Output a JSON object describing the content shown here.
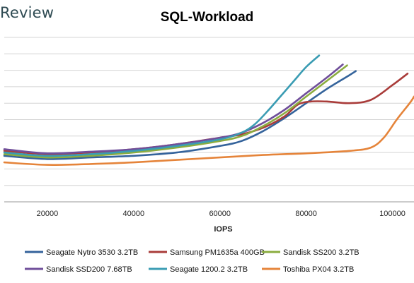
{
  "logo_text": "Review",
  "chart_data": {
    "type": "line",
    "title": "SQL-Workload",
    "xlabel": "IOPS",
    "ylabel": "",
    "x_ticks": [
      20000,
      40000,
      60000,
      80000,
      100000
    ],
    "xlim": [
      10000,
      105000
    ],
    "ylim": [
      0,
      10
    ],
    "y_grid_lines": 10,
    "legend_position": "bottom",
    "series": [
      {
        "name": "Seagate Nytro 3530 3.2TB",
        "color": "#34639b",
        "x": [
          10000,
          20000,
          30000,
          40000,
          50000,
          60000,
          65000,
          70000,
          75000,
          80000,
          85000,
          90000,
          91500
        ],
        "y": [
          2.8,
          2.6,
          2.7,
          2.8,
          3.0,
          3.4,
          3.7,
          4.3,
          5.1,
          6.0,
          6.9,
          7.7,
          7.95
        ]
      },
      {
        "name": "Samsung PM1635a 400GB",
        "color": "#a93c3a",
        "x": [
          10000,
          20000,
          30000,
          40000,
          50000,
          60000,
          65000,
          70000,
          75000,
          78000,
          81000,
          85000,
          90000,
          95000,
          100000,
          103500
        ],
        "y": [
          3.1,
          2.9,
          3.0,
          3.2,
          3.5,
          3.9,
          4.1,
          4.5,
          5.2,
          5.9,
          6.1,
          6.1,
          6.0,
          6.2,
          7.1,
          7.8
        ]
      },
      {
        "name": "Sandisk SS200 3.2TB",
        "color": "#8bac3f",
        "x": [
          10000,
          20000,
          30000,
          40000,
          50000,
          60000,
          65000,
          70000,
          75000,
          80000,
          85000,
          89500
        ],
        "y": [
          2.9,
          2.7,
          2.8,
          3.0,
          3.3,
          3.7,
          4.0,
          4.6,
          5.4,
          6.4,
          7.4,
          8.3
        ]
      },
      {
        "name": "Sandisk SSD200 7.68TB",
        "color": "#6f4e9a",
        "x": [
          10000,
          20000,
          30000,
          40000,
          50000,
          60000,
          65000,
          70000,
          75000,
          80000,
          85000,
          88500
        ],
        "y": [
          3.2,
          2.95,
          3.05,
          3.2,
          3.5,
          3.9,
          4.2,
          4.8,
          5.6,
          6.6,
          7.6,
          8.35
        ]
      },
      {
        "name": "Seagate 1200.2 3.2TB",
        "color": "#3a9cb3",
        "x": [
          10000,
          20000,
          30000,
          40000,
          50000,
          60000,
          65000,
          68000,
          71000,
          74000,
          77000,
          80000,
          83000
        ],
        "y": [
          3.0,
          2.8,
          2.9,
          3.1,
          3.4,
          3.8,
          4.2,
          4.7,
          5.5,
          6.4,
          7.3,
          8.2,
          8.9
        ]
      },
      {
        "name": "Toshiba PX04 3.2TB",
        "color": "#e5843a",
        "x": [
          10000,
          20000,
          30000,
          40000,
          50000,
          60000,
          70000,
          80000,
          90000,
          95000,
          98000,
          101000,
          104000,
          105000
        ],
        "y": [
          2.4,
          2.25,
          2.3,
          2.4,
          2.55,
          2.7,
          2.85,
          2.95,
          3.1,
          3.3,
          3.9,
          5.0,
          6.0,
          6.4
        ]
      }
    ]
  }
}
